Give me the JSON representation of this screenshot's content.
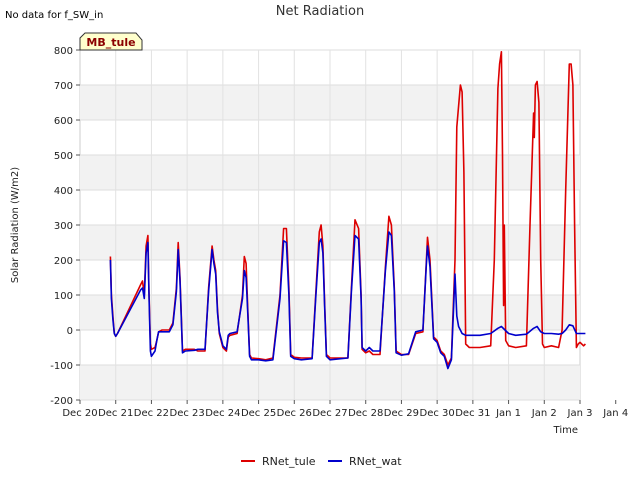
{
  "chart_data": {
    "type": "line",
    "title": "Net Radiation",
    "corner_note": "No data for f_SW_in",
    "site_badge": "MB_tule",
    "xlabel": "Time",
    "ylabel": "Solar Radiation (W/m2)",
    "xlim": [
      20,
      34
    ],
    "ylim": [
      -200,
      800
    ],
    "y_ticks": [
      -200,
      -100,
      0,
      100,
      200,
      300,
      400,
      500,
      600,
      700,
      800
    ],
    "x_ticks": [
      {
        "value": 20,
        "label": "Dec 20"
      },
      {
        "value": 21,
        "label": "Dec 21"
      },
      {
        "value": 22,
        "label": "Dec 22"
      },
      {
        "value": 23,
        "label": "Dec 23"
      },
      {
        "value": 24,
        "label": "Dec 24"
      },
      {
        "value": 25,
        "label": "Dec 25"
      },
      {
        "value": 26,
        "label": "Dec 26"
      },
      {
        "value": 27,
        "label": "Dec 27"
      },
      {
        "value": 28,
        "label": "Dec 28"
      },
      {
        "value": 29,
        "label": "Dec 29"
      },
      {
        "value": 30,
        "label": "Dec 30"
      },
      {
        "value": 31,
        "label": "Dec 31"
      },
      {
        "value": 32,
        "label": "Jan 1"
      },
      {
        "value": 33,
        "label": "Jan 2"
      },
      {
        "value": 34,
        "label": "Jan 3"
      },
      {
        "value": 35,
        "label": "Jan 4"
      }
    ],
    "grid": true,
    "legend_position": "bottom",
    "series": [
      {
        "name": "RNet_tule",
        "color": "#dd0000",
        "points": [
          [
            20.85,
            210
          ],
          [
            20.88,
            100
          ],
          [
            20.92,
            40
          ],
          [
            20.96,
            -10
          ],
          [
            21.0,
            -18
          ],
          [
            21.05,
            -10
          ],
          [
            21.7,
            130
          ],
          [
            21.75,
            140
          ],
          [
            21.8,
            100
          ],
          [
            21.85,
            240
          ],
          [
            21.9,
            270
          ],
          [
            21.93,
            120
          ],
          [
            21.97,
            -40
          ],
          [
            22.0,
            -55
          ],
          [
            22.1,
            -50
          ],
          [
            22.15,
            -30
          ],
          [
            22.2,
            -5
          ],
          [
            22.3,
            0
          ],
          [
            22.5,
            0
          ],
          [
            22.6,
            20
          ],
          [
            22.7,
            120
          ],
          [
            22.75,
            250
          ],
          [
            22.8,
            150
          ],
          [
            22.87,
            -60
          ],
          [
            22.95,
            -55
          ],
          [
            23.2,
            -55
          ],
          [
            23.3,
            -60
          ],
          [
            23.5,
            -60
          ],
          [
            23.6,
            120
          ],
          [
            23.7,
            240
          ],
          [
            23.75,
            200
          ],
          [
            23.8,
            170
          ],
          [
            23.85,
            60
          ],
          [
            23.9,
            -10
          ],
          [
            24.0,
            -50
          ],
          [
            24.1,
            -60
          ],
          [
            24.15,
            -20
          ],
          [
            24.2,
            -15
          ],
          [
            24.4,
            -10
          ],
          [
            24.55,
            100
          ],
          [
            24.6,
            210
          ],
          [
            24.65,
            190
          ],
          [
            24.7,
            50
          ],
          [
            24.75,
            -70
          ],
          [
            24.8,
            -80
          ],
          [
            25.0,
            -82
          ],
          [
            25.2,
            -85
          ],
          [
            25.4,
            -80
          ],
          [
            25.6,
            100
          ],
          [
            25.7,
            290
          ],
          [
            25.78,
            290
          ],
          [
            25.85,
            120
          ],
          [
            25.9,
            -70
          ],
          [
            26.0,
            -78
          ],
          [
            26.2,
            -80
          ],
          [
            26.5,
            -80
          ],
          [
            26.6,
            100
          ],
          [
            26.7,
            280
          ],
          [
            26.75,
            300
          ],
          [
            26.8,
            240
          ],
          [
            26.85,
            80
          ],
          [
            26.9,
            -70
          ],
          [
            27.0,
            -80
          ],
          [
            27.3,
            -80
          ],
          [
            27.5,
            -80
          ],
          [
            27.6,
            120
          ],
          [
            27.7,
            315
          ],
          [
            27.8,
            290
          ],
          [
            27.87,
            100
          ],
          [
            27.9,
            -55
          ],
          [
            28.0,
            -65
          ],
          [
            28.1,
            -60
          ],
          [
            28.2,
            -70
          ],
          [
            28.4,
            -70
          ],
          [
            28.55,
            180
          ],
          [
            28.65,
            325
          ],
          [
            28.72,
            300
          ],
          [
            28.8,
            120
          ],
          [
            28.85,
            -60
          ],
          [
            29.0,
            -70
          ],
          [
            29.2,
            -70
          ],
          [
            29.4,
            -10
          ],
          [
            29.6,
            -5
          ],
          [
            29.7,
            200
          ],
          [
            29.73,
            265
          ],
          [
            29.8,
            200
          ],
          [
            29.9,
            -20
          ],
          [
            30.0,
            -30
          ],
          [
            30.1,
            -60
          ],
          [
            30.2,
            -70
          ],
          [
            30.3,
            -100
          ],
          [
            30.4,
            -80
          ],
          [
            30.5,
            200
          ],
          [
            30.55,
            580
          ],
          [
            30.65,
            700
          ],
          [
            30.7,
            680
          ],
          [
            30.75,
            450
          ],
          [
            30.8,
            -40
          ],
          [
            30.9,
            -50
          ],
          [
            31.2,
            -50
          ],
          [
            31.5,
            -45
          ],
          [
            31.6,
            200
          ],
          [
            31.7,
            690
          ],
          [
            31.75,
            760
          ],
          [
            31.8,
            795
          ],
          [
            31.83,
            500
          ],
          [
            31.86,
            70
          ],
          [
            31.88,
            300
          ],
          [
            31.92,
            -30
          ],
          [
            32.0,
            -45
          ],
          [
            32.2,
            -50
          ],
          [
            32.5,
            -45
          ],
          [
            32.6,
            300
          ],
          [
            32.7,
            620
          ],
          [
            32.72,
            550
          ],
          [
            32.75,
            700
          ],
          [
            32.8,
            710
          ],
          [
            32.85,
            650
          ],
          [
            32.9,
            200
          ],
          [
            32.95,
            -40
          ],
          [
            33.0,
            -50
          ],
          [
            33.2,
            -45
          ],
          [
            33.4,
            -50
          ],
          [
            33.5,
            0
          ],
          [
            33.6,
            400
          ],
          [
            33.7,
            760
          ],
          [
            33.75,
            760
          ],
          [
            33.8,
            700
          ],
          [
            33.85,
            300
          ],
          [
            33.9,
            -50
          ],
          [
            33.95,
            -40
          ],
          [
            34.0,
            -35
          ],
          [
            34.1,
            -45
          ],
          [
            34.15,
            -40
          ]
        ]
      },
      {
        "name": "RNet_wat",
        "color": "#0000cc",
        "points": [
          [
            20.85,
            200
          ],
          [
            20.88,
            90
          ],
          [
            20.92,
            30
          ],
          [
            20.96,
            -10
          ],
          [
            21.0,
            -18
          ],
          [
            21.05,
            -10
          ],
          [
            21.7,
            115
          ],
          [
            21.75,
            120
          ],
          [
            21.8,
            90
          ],
          [
            21.85,
            220
          ],
          [
            21.9,
            250
          ],
          [
            21.93,
            110
          ],
          [
            21.97,
            -60
          ],
          [
            22.0,
            -75
          ],
          [
            22.1,
            -60
          ],
          [
            22.15,
            -30
          ],
          [
            22.2,
            -5
          ],
          [
            22.3,
            -5
          ],
          [
            22.5,
            -5
          ],
          [
            22.6,
            15
          ],
          [
            22.7,
            110
          ],
          [
            22.75,
            230
          ],
          [
            22.8,
            140
          ],
          [
            22.87,
            -65
          ],
          [
            22.95,
            -60
          ],
          [
            23.2,
            -58
          ],
          [
            23.3,
            -55
          ],
          [
            23.5,
            -55
          ],
          [
            23.6,
            110
          ],
          [
            23.7,
            230
          ],
          [
            23.75,
            190
          ],
          [
            23.8,
            160
          ],
          [
            23.85,
            50
          ],
          [
            23.9,
            -5
          ],
          [
            24.0,
            -45
          ],
          [
            24.1,
            -55
          ],
          [
            24.15,
            -15
          ],
          [
            24.2,
            -10
          ],
          [
            24.4,
            -5
          ],
          [
            24.55,
            90
          ],
          [
            24.6,
            170
          ],
          [
            24.65,
            150
          ],
          [
            24.7,
            40
          ],
          [
            24.75,
            -75
          ],
          [
            24.8,
            -85
          ],
          [
            25.0,
            -85
          ],
          [
            25.2,
            -88
          ],
          [
            25.4,
            -85
          ],
          [
            25.6,
            90
          ],
          [
            25.7,
            255
          ],
          [
            25.78,
            250
          ],
          [
            25.85,
            100
          ],
          [
            25.9,
            -75
          ],
          [
            26.0,
            -82
          ],
          [
            26.2,
            -85
          ],
          [
            26.5,
            -82
          ],
          [
            26.6,
            90
          ],
          [
            26.7,
            250
          ],
          [
            26.75,
            260
          ],
          [
            26.8,
            220
          ],
          [
            26.85,
            70
          ],
          [
            26.9,
            -75
          ],
          [
            27.0,
            -85
          ],
          [
            27.3,
            -82
          ],
          [
            27.5,
            -80
          ],
          [
            27.6,
            110
          ],
          [
            27.7,
            270
          ],
          [
            27.8,
            260
          ],
          [
            27.87,
            90
          ],
          [
            27.9,
            -50
          ],
          [
            28.0,
            -60
          ],
          [
            28.1,
            -50
          ],
          [
            28.2,
            -60
          ],
          [
            28.4,
            -60
          ],
          [
            28.55,
            170
          ],
          [
            28.65,
            280
          ],
          [
            28.72,
            270
          ],
          [
            28.8,
            110
          ],
          [
            28.85,
            -65
          ],
          [
            29.0,
            -72
          ],
          [
            29.2,
            -68
          ],
          [
            29.4,
            -5
          ],
          [
            29.6,
            0
          ],
          [
            29.7,
            190
          ],
          [
            29.73,
            240
          ],
          [
            29.8,
            180
          ],
          [
            29.9,
            -25
          ],
          [
            30.0,
            -35
          ],
          [
            30.1,
            -65
          ],
          [
            30.2,
            -75
          ],
          [
            30.3,
            -110
          ],
          [
            30.4,
            -85
          ],
          [
            30.5,
            160
          ],
          [
            30.55,
            40
          ],
          [
            30.6,
            10
          ],
          [
            30.7,
            -10
          ],
          [
            30.8,
            -15
          ],
          [
            31.0,
            -15
          ],
          [
            31.2,
            -15
          ],
          [
            31.5,
            -10
          ],
          [
            31.7,
            5
          ],
          [
            31.8,
            10
          ],
          [
            31.9,
            0
          ],
          [
            32.0,
            -10
          ],
          [
            32.2,
            -15
          ],
          [
            32.5,
            -12
          ],
          [
            32.7,
            5
          ],
          [
            32.8,
            10
          ],
          [
            32.9,
            -5
          ],
          [
            33.0,
            -10
          ],
          [
            33.2,
            -10
          ],
          [
            33.4,
            -12
          ],
          [
            33.5,
            -10
          ],
          [
            33.6,
            0
          ],
          [
            33.7,
            15
          ],
          [
            33.8,
            12
          ],
          [
            33.9,
            -10
          ],
          [
            34.0,
            -10
          ],
          [
            34.15,
            -10
          ]
        ]
      }
    ]
  }
}
